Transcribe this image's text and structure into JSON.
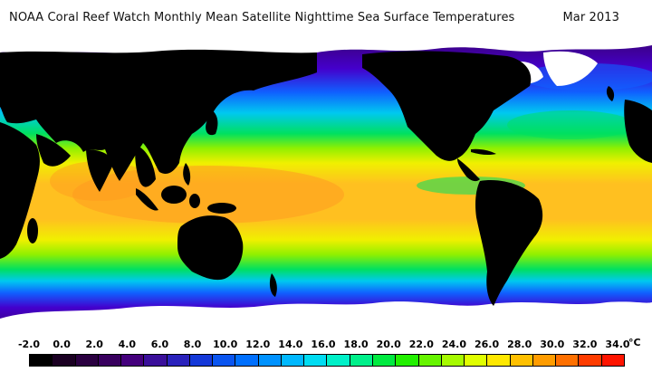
{
  "title": {
    "main": "NOAA Coral Reef Watch Monthly Mean Satellite Nighttime Sea Surface Temperatures",
    "date": "Mar 2013"
  },
  "legend": {
    "unit": "°C",
    "ticks": [
      "-2.0",
      "0.0",
      "2.0",
      "4.0",
      "6.0",
      "8.0",
      "10.0",
      "12.0",
      "14.0",
      "16.0",
      "18.0",
      "20.0",
      "22.0",
      "24.0",
      "26.0",
      "28.0",
      "30.0",
      "32.0",
      "34.0"
    ],
    "swatch_colors": [
      "#000000",
      "#1a0022",
      "#2a0040",
      "#38005e",
      "#44007c",
      "#3a0f9a",
      "#2a22bc",
      "#1438d8",
      "#0a55f0",
      "#0070ff",
      "#0092ff",
      "#00b8ff",
      "#00dcf2",
      "#00f0c8",
      "#00f08a",
      "#00ea40",
      "#22f000",
      "#66f400",
      "#a6fa00",
      "#e0ff00",
      "#ffe800",
      "#ffc000",
      "#ff9c00",
      "#ff7000",
      "#ff3c00",
      "#ff1400"
    ]
  },
  "map_colors": {
    "land": "#000000",
    "ice": "#ffffff",
    "polar": "#3a0070",
    "cold": "#4400cc",
    "cool": "#1060ff",
    "mild": "#00c8f0",
    "temperate": "#00e060",
    "warm": "#90f000",
    "subtropical": "#f0f000",
    "tropical": "#ffc020",
    "hot": "#ff9a20"
  }
}
